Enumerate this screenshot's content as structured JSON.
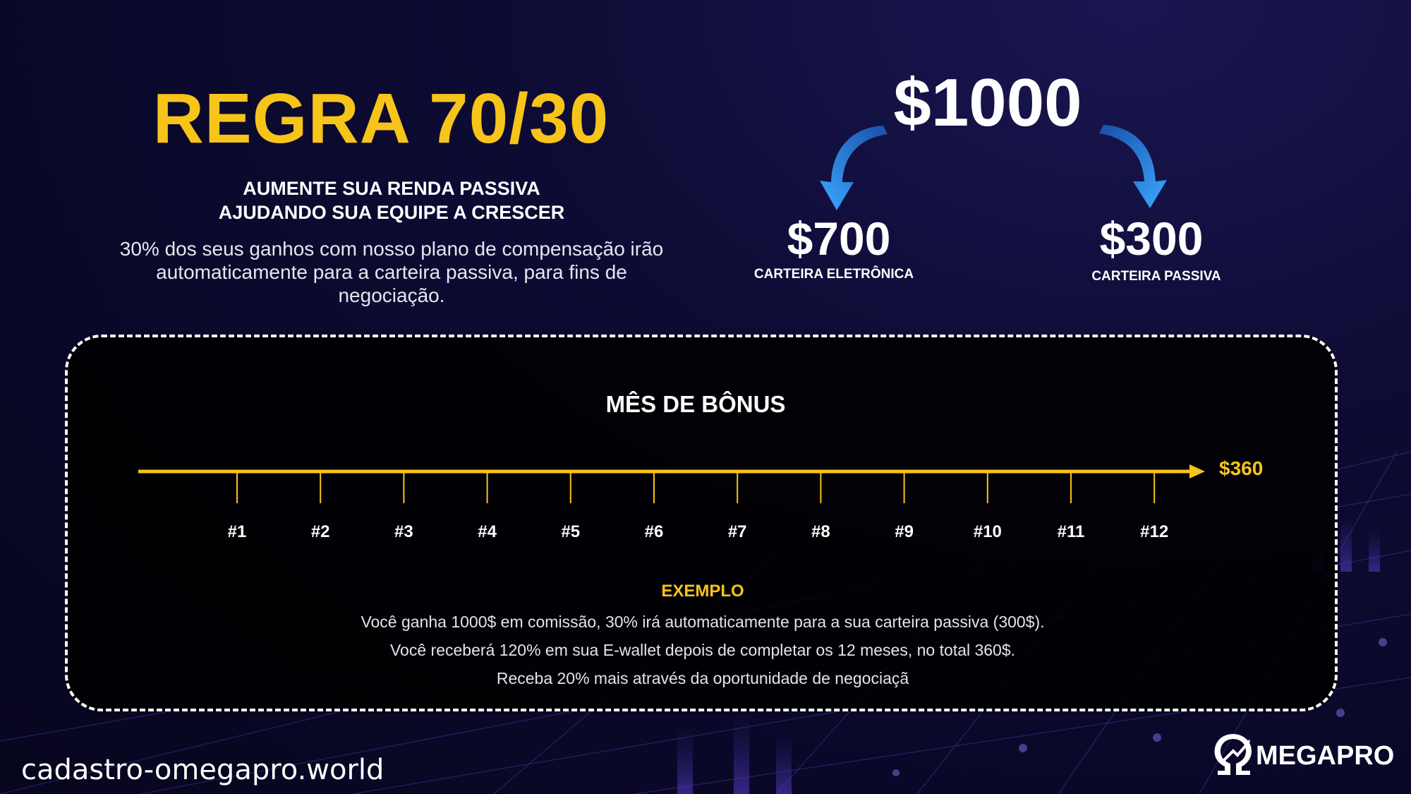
{
  "header": {
    "title": "REGRA 70/30",
    "subtitle_lines": [
      "AUMENTE SUA RENDA PASSIVA",
      "AJUDANDO SUA EQUIPE A CRESCER"
    ],
    "description": "30% dos seus ganhos com nosso plano de compensação irão automaticamente para a carteira passiva, para fins de negociação."
  },
  "split": {
    "total": "$1000",
    "left": {
      "amount": "$700",
      "label": "CARTEIRA ELETRÔNICA"
    },
    "right": {
      "amount": "$300",
      "label": "CARTEIRA PASSIVA"
    }
  },
  "bonus": {
    "title": "MÊS DE BÔNUS",
    "end_value": "$360",
    "months": [
      "#1",
      "#2",
      "#3",
      "#4",
      "#5",
      "#6",
      "#7",
      "#8",
      "#9",
      "#10",
      "#11",
      "#12"
    ],
    "example_title": "EXEMPLO",
    "example_lines": [
      "Você ganha 1000$ em comissão, 30% irá automaticamente para a sua carteira passiva (300$).",
      "Você receberá 120% em sua E-wallet depois de completar os 12 meses, no total 360$.",
      "Receba 20% mais através da oportunidade de negociaçã"
    ]
  },
  "footer": {
    "site": "cadastro-omegapro.world",
    "brand": "MEGAPRO"
  },
  "colors": {
    "accent": "#f7c41a",
    "background": "#0d0b33",
    "arrow_blue": "#2a8ff0"
  },
  "icons": {
    "left_arrow": "curved-arrow-down-left-icon",
    "right_arrow": "curved-arrow-down-right-icon",
    "logo": "omega-logo-icon"
  }
}
